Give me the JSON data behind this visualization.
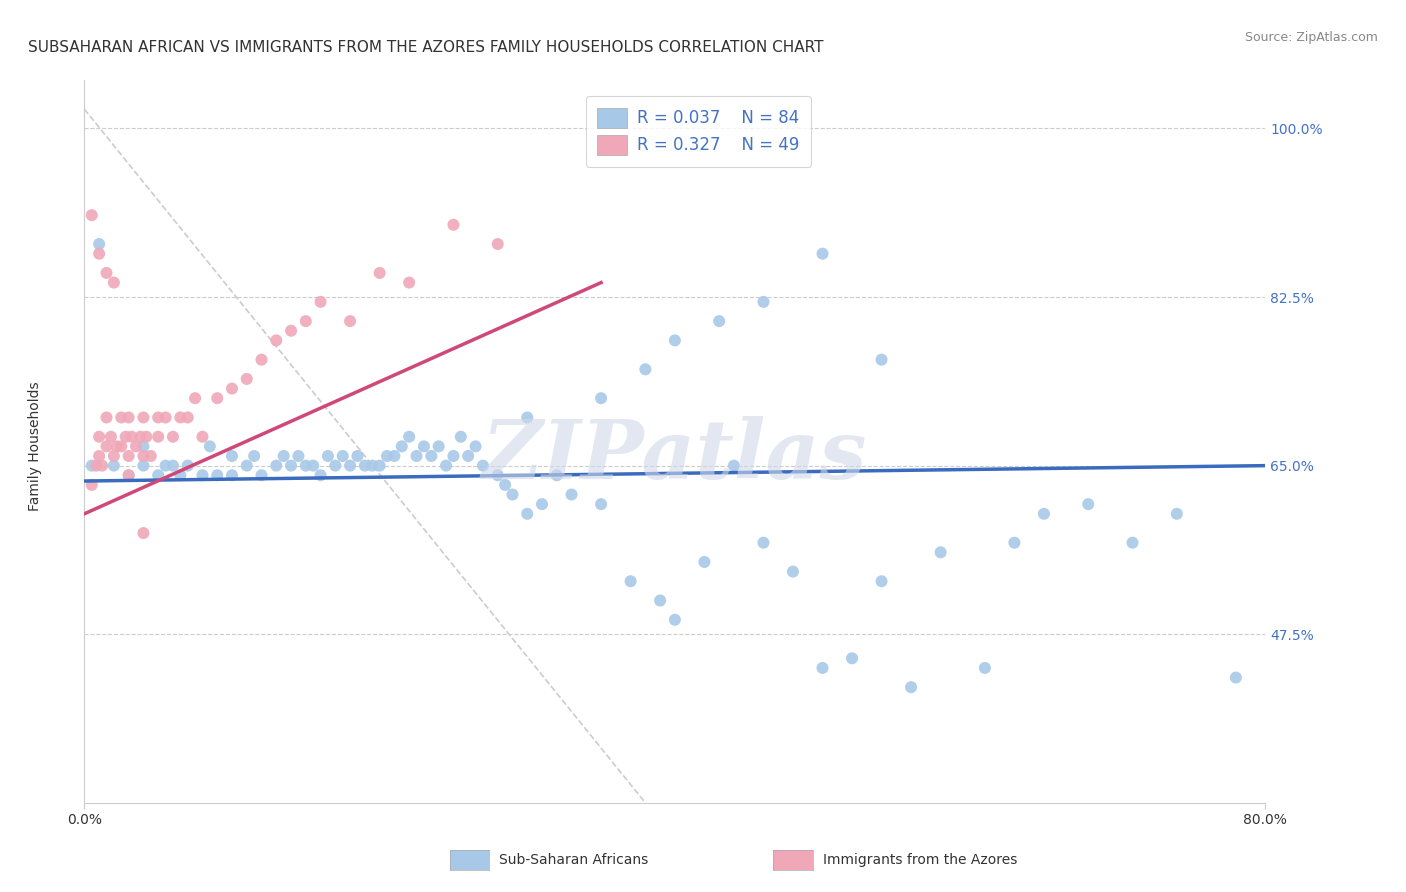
{
  "title": "SUBSAHARAN AFRICAN VS IMMIGRANTS FROM THE AZORES FAMILY HOUSEHOLDS CORRELATION CHART",
  "source": "Source: ZipAtlas.com",
  "ylabel": "Family Households",
  "legend_label1": "Sub-Saharan Africans",
  "legend_label2": "Immigrants from the Azores",
  "R1": 0.037,
  "N1": 84,
  "R2": 0.327,
  "N2": 49,
  "color1": "#a8c8e8",
  "color2": "#f0a8b8",
  "line1_color": "#3a6bbf",
  "line2_color": "#d04878",
  "watermark": "ZIPatlas",
  "xmin": 0.0,
  "xmax": 0.8,
  "ymin": 0.3,
  "ymax": 1.05,
  "yticks": [
    0.475,
    0.65,
    0.825,
    1.0
  ],
  "ytick_labels": [
    "47.5%",
    "65.0%",
    "82.5%",
    "100.0%"
  ],
  "xtick_labels": [
    "0.0%",
    "80.0%"
  ],
  "blue_line_x0": 0.0,
  "blue_line_y0": 0.634,
  "blue_line_x1": 0.8,
  "blue_line_y1": 0.65,
  "pink_line_x0": 0.0,
  "pink_line_y0": 0.6,
  "pink_line_x1": 0.35,
  "pink_line_y1": 0.84,
  "blue_scatter_x": [
    0.005,
    0.01,
    0.02,
    0.03,
    0.04,
    0.04,
    0.05,
    0.055,
    0.06,
    0.065,
    0.07,
    0.08,
    0.085,
    0.09,
    0.1,
    0.1,
    0.11,
    0.115,
    0.12,
    0.13,
    0.135,
    0.14,
    0.145,
    0.15,
    0.155,
    0.16,
    0.165,
    0.17,
    0.175,
    0.18,
    0.185,
    0.19,
    0.195,
    0.2,
    0.205,
    0.21,
    0.215,
    0.22,
    0.225,
    0.23,
    0.235,
    0.24,
    0.245,
    0.25,
    0.255,
    0.26,
    0.265,
    0.27,
    0.28,
    0.285,
    0.29,
    0.3,
    0.31,
    0.32,
    0.33,
    0.35,
    0.37,
    0.39,
    0.4,
    0.42,
    0.44,
    0.46,
    0.48,
    0.5,
    0.52,
    0.54,
    0.56,
    0.58,
    0.61,
    0.63,
    0.65,
    0.68,
    0.71,
    0.74,
    0.78,
    0.3,
    0.35,
    0.38,
    0.4,
    0.43,
    0.46,
    0.5,
    0.54
  ],
  "blue_scatter_y": [
    0.65,
    0.88,
    0.65,
    0.64,
    0.65,
    0.67,
    0.64,
    0.65,
    0.65,
    0.64,
    0.65,
    0.64,
    0.67,
    0.64,
    0.64,
    0.66,
    0.65,
    0.66,
    0.64,
    0.65,
    0.66,
    0.65,
    0.66,
    0.65,
    0.65,
    0.64,
    0.66,
    0.65,
    0.66,
    0.65,
    0.66,
    0.65,
    0.65,
    0.65,
    0.66,
    0.66,
    0.67,
    0.68,
    0.66,
    0.67,
    0.66,
    0.67,
    0.65,
    0.66,
    0.68,
    0.66,
    0.67,
    0.65,
    0.64,
    0.63,
    0.62,
    0.6,
    0.61,
    0.64,
    0.62,
    0.61,
    0.53,
    0.51,
    0.49,
    0.55,
    0.65,
    0.57,
    0.54,
    0.44,
    0.45,
    0.53,
    0.42,
    0.56,
    0.44,
    0.57,
    0.6,
    0.61,
    0.57,
    0.6,
    0.43,
    0.7,
    0.72,
    0.75,
    0.78,
    0.8,
    0.82,
    0.87,
    0.76
  ],
  "pink_scatter_x": [
    0.005,
    0.008,
    0.01,
    0.01,
    0.012,
    0.015,
    0.015,
    0.018,
    0.02,
    0.022,
    0.025,
    0.025,
    0.028,
    0.03,
    0.03,
    0.032,
    0.035,
    0.038,
    0.04,
    0.04,
    0.042,
    0.045,
    0.05,
    0.05,
    0.055,
    0.06,
    0.065,
    0.07,
    0.075,
    0.08,
    0.09,
    0.1,
    0.11,
    0.12,
    0.13,
    0.14,
    0.15,
    0.16,
    0.18,
    0.2,
    0.22,
    0.25,
    0.28,
    0.01,
    0.015,
    0.02,
    0.005,
    0.03,
    0.04
  ],
  "pink_scatter_y": [
    0.63,
    0.65,
    0.66,
    0.68,
    0.65,
    0.67,
    0.7,
    0.68,
    0.66,
    0.67,
    0.67,
    0.7,
    0.68,
    0.66,
    0.7,
    0.68,
    0.67,
    0.68,
    0.66,
    0.7,
    0.68,
    0.66,
    0.68,
    0.7,
    0.7,
    0.68,
    0.7,
    0.7,
    0.72,
    0.68,
    0.72,
    0.73,
    0.74,
    0.76,
    0.78,
    0.79,
    0.8,
    0.82,
    0.8,
    0.85,
    0.84,
    0.9,
    0.88,
    0.87,
    0.85,
    0.84,
    0.91,
    0.64,
    0.58
  ],
  "title_fontsize": 11,
  "axis_label_fontsize": 10,
  "tick_fontsize": 10,
  "legend_fontsize": 12
}
